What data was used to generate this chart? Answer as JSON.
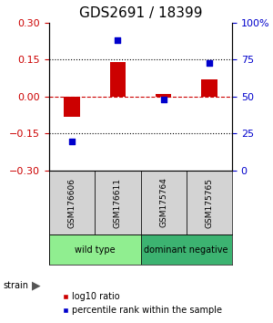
{
  "title": "GDS2691 / 18399",
  "samples": [
    "GSM176606",
    "GSM176611",
    "GSM175764",
    "GSM175765"
  ],
  "log10_ratio": [
    -0.08,
    0.14,
    0.01,
    0.07
  ],
  "percentile_rank": [
    20,
    88,
    48,
    73
  ],
  "groups": [
    {
      "label": "wild type",
      "samples": [
        0,
        1
      ],
      "color": "#90ee90"
    },
    {
      "label": "dominant negative",
      "samples": [
        2,
        3
      ],
      "color": "#3cb371"
    }
  ],
  "ylim_left": [
    -0.3,
    0.3
  ],
  "ylim_right": [
    0,
    100
  ],
  "yticks_left": [
    -0.3,
    -0.15,
    0,
    0.15,
    0.3
  ],
  "yticks_right": [
    0,
    25,
    50,
    75,
    100
  ],
  "bar_color": "#cc0000",
  "dot_color": "#0000cc",
  "hline_color": "#cc0000",
  "grid_color": "#000000",
  "title_fontsize": 11,
  "tick_fontsize": 8,
  "legend_fontsize": 7,
  "strain_label": "strain",
  "legend_items": [
    "log10 ratio",
    "percentile rank within the sample"
  ],
  "sample_bg_color": "#d3d3d3",
  "bar_width": 0.35
}
